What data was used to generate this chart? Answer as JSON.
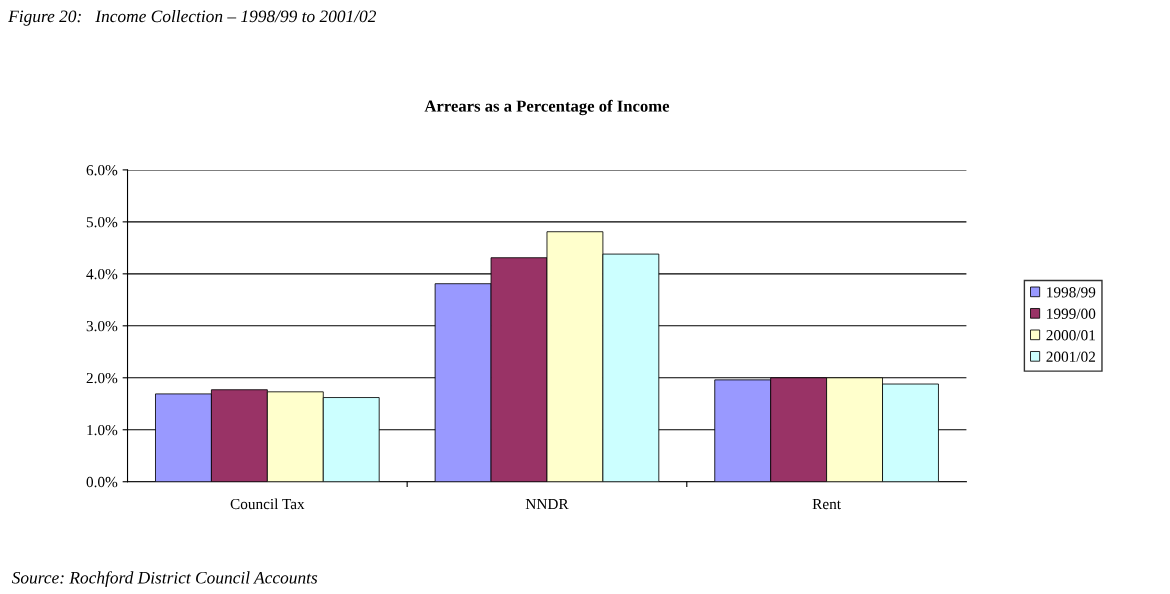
{
  "chart_data": {
    "type": "bar",
    "title": "Arrears as a Percentage of Income",
    "categories": [
      "Council Tax",
      "NNDR",
      "Rent"
    ],
    "series": [
      {
        "name": "1998/99",
        "color": "#9999ff",
        "values": [
          1.69,
          3.81,
          1.96
        ]
      },
      {
        "name": "1999/00",
        "color": "#993366",
        "values": [
          1.77,
          4.31,
          2.0
        ]
      },
      {
        "name": "2000/01",
        "color": "#ffffcc",
        "values": [
          1.73,
          4.81,
          2.0
        ]
      },
      {
        "name": "2001/02",
        "color": "#ccffff",
        "values": [
          1.62,
          4.38,
          1.88
        ]
      }
    ],
    "ylim": [
      0,
      6
    ],
    "yticks": [
      {
        "value": 0,
        "label": "0.0%"
      },
      {
        "value": 1,
        "label": "1.0%"
      },
      {
        "value": 2,
        "label": "2.0%"
      },
      {
        "value": 3,
        "label": "3.0%"
      },
      {
        "value": 4,
        "label": "4.0%"
      },
      {
        "value": 5,
        "label": "5.0%"
      },
      {
        "value": 6,
        "label": "6.0%"
      }
    ],
    "grid": "y",
    "legend": "right",
    "annotations": [
      "Figure 20:   Income Collection – 1998/99 to 2001/02",
      "Source: Rochford District Council Accounts"
    ]
  }
}
